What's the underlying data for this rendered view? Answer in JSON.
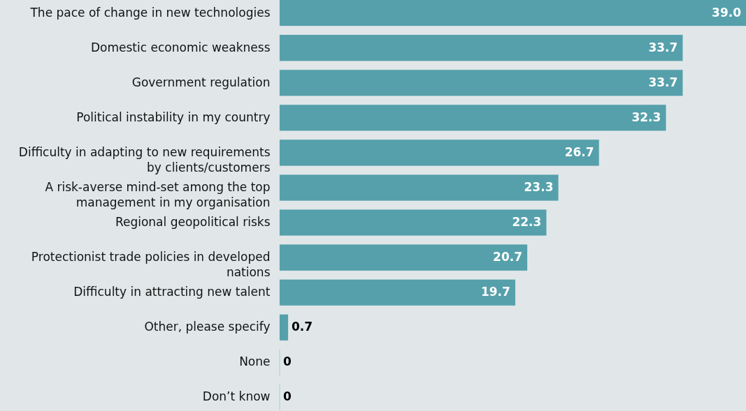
{
  "chart_data": {
    "type": "bar",
    "orientation": "horizontal",
    "color": "#55a0ab",
    "categories": [
      "The pace of change in new technologies",
      "Domestic economic weakness",
      "Government regulation",
      "Political instability in my country",
      "Difficulty in adapting to new requirements by clients/customers",
      "A risk-averse mind-set among the top management in my organisation",
      "Regional geopolitical risks",
      "Protectionist trade policies in developed nations",
      "Difficulty in attracting new talent",
      "Other, please specify",
      "None",
      "Don’t know"
    ],
    "values": [
      39.0,
      33.7,
      33.7,
      32.3,
      26.7,
      23.3,
      22.3,
      20.7,
      19.7,
      0.7,
      0,
      0
    ],
    "value_labels": [
      "39.0",
      "33.7",
      "33.7",
      "32.3",
      "26.7",
      "23.3",
      "22.3",
      "20.7",
      "19.7",
      "0.7",
      "0",
      "0"
    ]
  }
}
